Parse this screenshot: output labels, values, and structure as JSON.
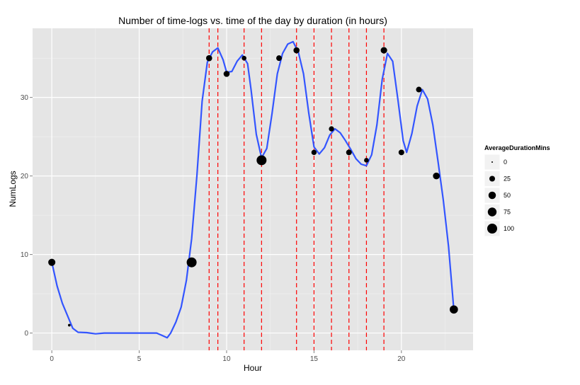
{
  "chart_data": {
    "type": "scatter",
    "title": "Number of time-logs vs. time of the day by duration (in hours)",
    "xlabel": "Hour",
    "ylabel": "NumLogs",
    "xlim": [
      -1.1,
      24.1
    ],
    "ylim": [
      -2.2,
      38.8
    ],
    "x_ticks": [
      0,
      5,
      10,
      15,
      20
    ],
    "y_ticks": [
      0,
      10,
      20,
      30
    ],
    "grid": true,
    "points": [
      {
        "x": 0,
        "y": 9,
        "duration": 45
      },
      {
        "x": 1,
        "y": 1,
        "duration": 2
      },
      {
        "x": 8,
        "y": 9,
        "duration": 100
      },
      {
        "x": 9,
        "y": 35,
        "duration": 30
      },
      {
        "x": 10,
        "y": 33,
        "duration": 30
      },
      {
        "x": 11,
        "y": 35,
        "duration": 15
      },
      {
        "x": 12,
        "y": 22,
        "duration": 100
      },
      {
        "x": 13,
        "y": 35,
        "duration": 25
      },
      {
        "x": 14,
        "y": 36,
        "duration": 30
      },
      {
        "x": 15,
        "y": 23,
        "duration": 20
      },
      {
        "x": 16,
        "y": 26,
        "duration": 20
      },
      {
        "x": 17,
        "y": 23,
        "duration": 25
      },
      {
        "x": 18,
        "y": 22,
        "duration": 15
      },
      {
        "x": 19,
        "y": 36,
        "duration": 35
      },
      {
        "x": 20,
        "y": 23,
        "duration": 25
      },
      {
        "x": 21,
        "y": 31,
        "duration": 25
      },
      {
        "x": 22,
        "y": 20,
        "duration": 40
      },
      {
        "x": 23,
        "y": 3,
        "duration": 65
      }
    ],
    "smooth_line": {
      "color": "#3355ff",
      "points": [
        [
          0,
          9
        ],
        [
          0.3,
          6
        ],
        [
          0.6,
          3.8
        ],
        [
          0.9,
          2.2
        ],
        [
          1.2,
          0.6
        ],
        [
          1.5,
          0.1
        ],
        [
          2,
          0.05
        ],
        [
          2.5,
          -0.1
        ],
        [
          3,
          0
        ],
        [
          4,
          0
        ],
        [
          5,
          0
        ],
        [
          6,
          0
        ],
        [
          6.3,
          -0.3
        ],
        [
          6.6,
          -0.6
        ],
        [
          6.8,
          0
        ],
        [
          7.1,
          1.4
        ],
        [
          7.4,
          3.3
        ],
        [
          7.7,
          6.7
        ],
        [
          8,
          12
        ],
        [
          8.3,
          20
        ],
        [
          8.6,
          29.5
        ],
        [
          8.9,
          34.5
        ],
        [
          9.2,
          35.8
        ],
        [
          9.5,
          36.3
        ],
        [
          9.8,
          34.8
        ],
        [
          10,
          33.2
        ],
        [
          10.3,
          33.3
        ],
        [
          10.6,
          34.6
        ],
        [
          10.9,
          35.4
        ],
        [
          11.2,
          34.3
        ],
        [
          11.4,
          31
        ],
        [
          11.7,
          25.3
        ],
        [
          12,
          22.3
        ],
        [
          12.3,
          23.5
        ],
        [
          12.6,
          28
        ],
        [
          12.9,
          33
        ],
        [
          13.2,
          35.6
        ],
        [
          13.5,
          36.8
        ],
        [
          13.8,
          37.1
        ],
        [
          14.1,
          35.8
        ],
        [
          14.4,
          33
        ],
        [
          14.7,
          28
        ],
        [
          15,
          23.7
        ],
        [
          15.3,
          22.8
        ],
        [
          15.6,
          23.6
        ],
        [
          15.9,
          25.2
        ],
        [
          16.2,
          26
        ],
        [
          16.5,
          25.5
        ],
        [
          16.8,
          24.5
        ],
        [
          17.1,
          23.4
        ],
        [
          17.4,
          22.2
        ],
        [
          17.7,
          21.5
        ],
        [
          18,
          21.3
        ],
        [
          18.3,
          22.7
        ],
        [
          18.6,
          26.5
        ],
        [
          18.9,
          32.3
        ],
        [
          19.2,
          35.6
        ],
        [
          19.5,
          34.6
        ],
        [
          19.8,
          29.7
        ],
        [
          20.1,
          24.5
        ],
        [
          20.3,
          23
        ],
        [
          20.6,
          25.4
        ],
        [
          20.9,
          28.9
        ],
        [
          21.2,
          31
        ],
        [
          21.5,
          29.8
        ],
        [
          21.8,
          26.5
        ],
        [
          22.1,
          21.8
        ],
        [
          22.4,
          16.9
        ],
        [
          22.7,
          11
        ],
        [
          23,
          3
        ]
      ]
    },
    "vlines": {
      "color": "#ff0000",
      "x": [
        9,
        9.5,
        11,
        12,
        14,
        15,
        16,
        17,
        18,
        19
      ]
    },
    "legend": {
      "title": "AverageDurationMins",
      "placement": "right",
      "entries": [
        {
          "label": "0",
          "size": 0
        },
        {
          "label": "25",
          "size": 25
        },
        {
          "label": "50",
          "size": 50
        },
        {
          "label": "75",
          "size": 75
        },
        {
          "label": "100",
          "size": 100
        }
      ]
    }
  }
}
